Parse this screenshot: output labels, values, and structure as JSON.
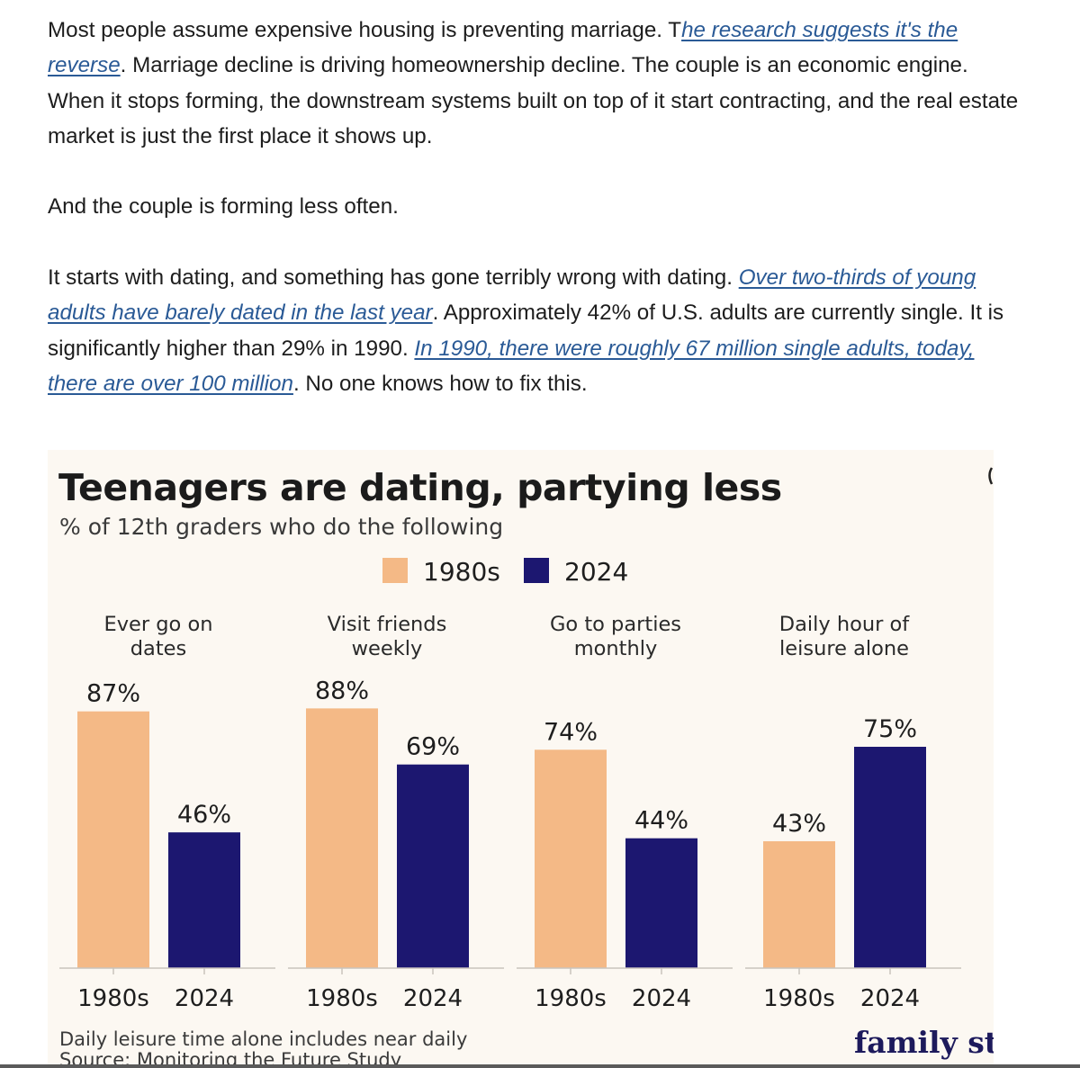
{
  "article": {
    "p1": {
      "before": "Most people assume expensive housing is preventing marriage. T",
      "link": "he research suggests it's the reverse",
      "after": ". Marriage decline is driving homeownership decline. The couple is an economic engine. When it stops forming, the downstream systems built on top of it start contracting, and the real estate market is just the first place it shows up."
    },
    "p2": "And the couple is forming less often.",
    "p3": {
      "before": "It starts with dating, and something has gone terribly wrong with dating. ",
      "link1": "Over two-thirds of young adults have barely dated in the last year",
      "middle": ". Approximately 42% of U.S. adults are currently single. It is significantly higher than 29% in 1990. ",
      "link2": "In 1990, there were roughly 67 million single adults, today, there are over 100 million",
      "after": ". No one knows how to fix this."
    }
  },
  "colors": {
    "series_1980s": "#f4b986",
    "series_2024": "#1c1770",
    "card_background": "#fcf8f2",
    "link": "#2a5a96"
  },
  "chart_data": {
    "type": "bar",
    "title": "Teenagers are dating, partying less",
    "subtitle": "% of 12th graders who do the following",
    "legend": [
      "1980s",
      "2024"
    ],
    "series_names": [
      "1980s",
      "2024"
    ],
    "groups": [
      {
        "label_lines": [
          "Ever go on",
          "dates"
        ],
        "values": [
          87,
          46
        ],
        "value_labels": [
          "87%",
          "46%"
        ],
        "x_labels": [
          "1980s",
          "2024"
        ]
      },
      {
        "label_lines": [
          "Visit friends",
          "weekly"
        ],
        "values": [
          88,
          69
        ],
        "value_labels": [
          "88%",
          "69%"
        ],
        "x_labels": [
          "1980s",
          "2024"
        ]
      },
      {
        "label_lines": [
          "Go to parties",
          "monthly"
        ],
        "values": [
          74,
          44
        ],
        "value_labels": [
          "74%",
          "44%"
        ],
        "x_labels": [
          "1980s",
          "2024"
        ]
      },
      {
        "label_lines": [
          "Daily hour of",
          "leisure alone"
        ],
        "values": [
          43,
          75
        ],
        "value_labels": [
          "43%",
          "75%"
        ],
        "x_labels": [
          "1980s",
          "2024"
        ]
      }
    ],
    "ylim": [
      0,
      100
    ],
    "notes": [
      "Daily leisure time alone includes near daily",
      "Source: Monitoring the Future Study"
    ],
    "logo_text": "family studies"
  }
}
